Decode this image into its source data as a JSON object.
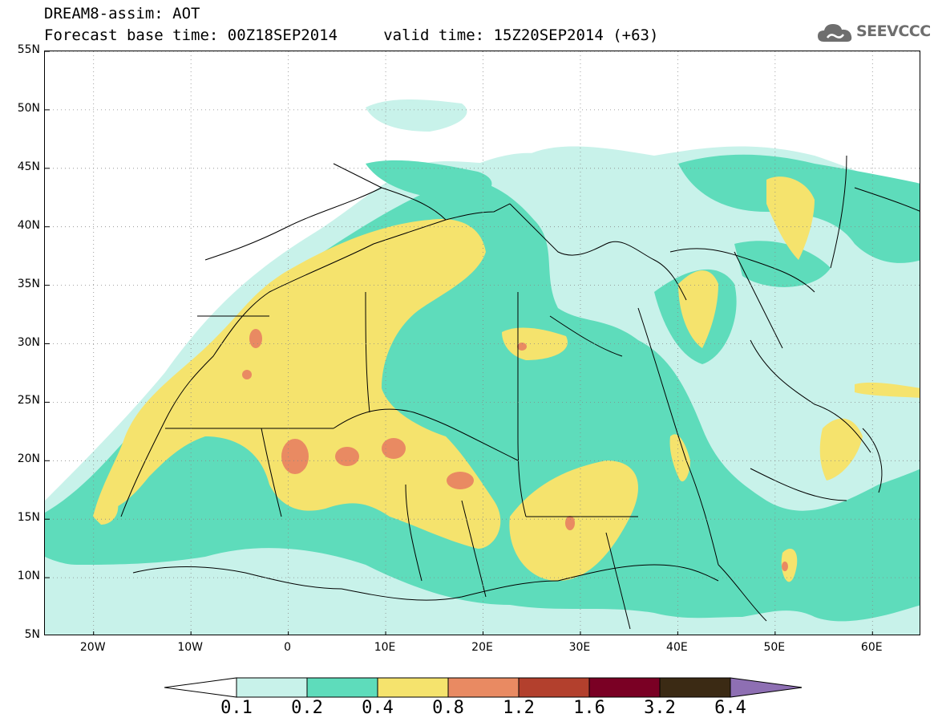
{
  "header": {
    "line1": "DREAM8-assim: AOT",
    "line2": "Forecast base time: 00Z18SEP2014     valid time: 15Z20SEP2014 (+63)"
  },
  "logo": {
    "text": "SEEVCCC",
    "icon": "cloud-icon",
    "color": "#6e6e6e"
  },
  "map": {
    "lat_range": [
      5,
      55
    ],
    "lon_range": [
      -25,
      65
    ],
    "lat_ticks": [
      {
        "v": 55,
        "label": "55N"
      },
      {
        "v": 50,
        "label": "50N"
      },
      {
        "v": 45,
        "label": "45N"
      },
      {
        "v": 40,
        "label": "40N"
      },
      {
        "v": 35,
        "label": "35N"
      },
      {
        "v": 30,
        "label": "30N"
      },
      {
        "v": 25,
        "label": "25N"
      },
      {
        "v": 20,
        "label": "20N"
      },
      {
        "v": 15,
        "label": "15N"
      },
      {
        "v": 10,
        "label": "10N"
      },
      {
        "v": 5,
        "label": "5N"
      }
    ],
    "lon_ticks": [
      {
        "v": -20,
        "label": "20W"
      },
      {
        "v": -10,
        "label": "10W"
      },
      {
        "v": 0,
        "label": "0"
      },
      {
        "v": 10,
        "label": "10E"
      },
      {
        "v": 20,
        "label": "20E"
      },
      {
        "v": 30,
        "label": "30E"
      },
      {
        "v": 40,
        "label": "40E"
      },
      {
        "v": 50,
        "label": "50E"
      },
      {
        "v": 60,
        "label": "60E"
      }
    ],
    "grid": "dotted",
    "land_fill": "#ffffff",
    "border_color": "#000000"
  },
  "colorbar": {
    "labels": [
      "0.1",
      "0.2",
      "0.4",
      "0.8",
      "1.2",
      "1.6",
      "3.2",
      "6.4"
    ],
    "colors": [
      "#ffffff",
      "#c8f2ea",
      "#5edcbb",
      "#f5e36d",
      "#e98a62",
      "#b3402d",
      "#7a0024",
      "#3b2a14",
      "#8e6fb3"
    ]
  }
}
